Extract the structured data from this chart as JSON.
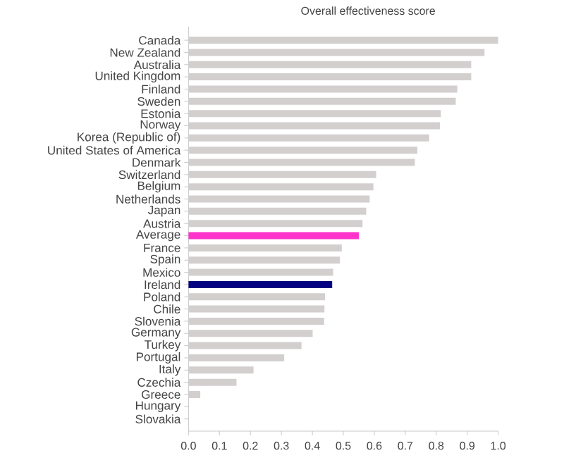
{
  "chart_data": {
    "type": "bar",
    "orientation": "horizontal",
    "title": "Overall effectiveness score",
    "categories": [
      "Canada",
      "New Zealand",
      "Australia",
      "United Kingdom",
      "Finland",
      "Sweden",
      "Estonia",
      "Norway",
      "Korea (Republic of)",
      "United States of America",
      "Denmark",
      "Switzerland",
      "Belgium",
      "Netherlands",
      "Japan",
      "Austria",
      "Average",
      "France",
      "Spain",
      "Mexico",
      "Ireland",
      "Poland",
      "Chile",
      "Slovenia",
      "Germany",
      "Turkey",
      "Portugal",
      "Italy",
      "Czechia",
      "Greece",
      "Hungary",
      "Slovakia"
    ],
    "values": [
      1.0,
      0.956,
      0.913,
      0.913,
      0.868,
      0.863,
      0.815,
      0.812,
      0.777,
      0.739,
      0.731,
      0.606,
      0.597,
      0.585,
      0.574,
      0.562,
      0.55,
      0.495,
      0.489,
      0.467,
      0.464,
      0.441,
      0.439,
      0.438,
      0.401,
      0.365,
      0.309,
      0.21,
      0.155,
      0.038,
      0,
      0
    ],
    "colors": [
      "#d3cfcf",
      "#d3cfcf",
      "#d3cfcf",
      "#d3cfcf",
      "#d3cfcf",
      "#d3cfcf",
      "#d3cfcf",
      "#d3cfcf",
      "#d3cfcf",
      "#d3cfcf",
      "#d3cfcf",
      "#d3cfcf",
      "#d3cfcf",
      "#d3cfcf",
      "#d3cfcf",
      "#d3cfcf",
      "#ff33cc",
      "#d3cfcf",
      "#d3cfcf",
      "#d3cfcf",
      "#000080",
      "#d3cfcf",
      "#d3cfcf",
      "#d3cfcf",
      "#d3cfcf",
      "#d3cfcf",
      "#d3cfcf",
      "#d3cfcf",
      "#d3cfcf",
      "#d3cfcf",
      "#d3cfcf",
      "#d3cfcf"
    ],
    "xlim": [
      0,
      1
    ],
    "xticks": [
      {
        "value": 0,
        "label": "0.0"
      },
      {
        "value": 0.1,
        "label": "0.1"
      },
      {
        "value": 0.2,
        "label": "0.2"
      },
      {
        "value": 0.3,
        "label": "0.3"
      },
      {
        "value": 0.4,
        "label": "0.4"
      },
      {
        "value": 0.5,
        "label": "0.5"
      },
      {
        "value": 0.6,
        "label": "0.6"
      },
      {
        "value": 0.7,
        "label": "0.7"
      },
      {
        "value": 0.8,
        "label": "0.8"
      },
      {
        "value": 0.9,
        "label": "0.9"
      },
      {
        "value": 1,
        "label": "1.0"
      }
    ]
  }
}
